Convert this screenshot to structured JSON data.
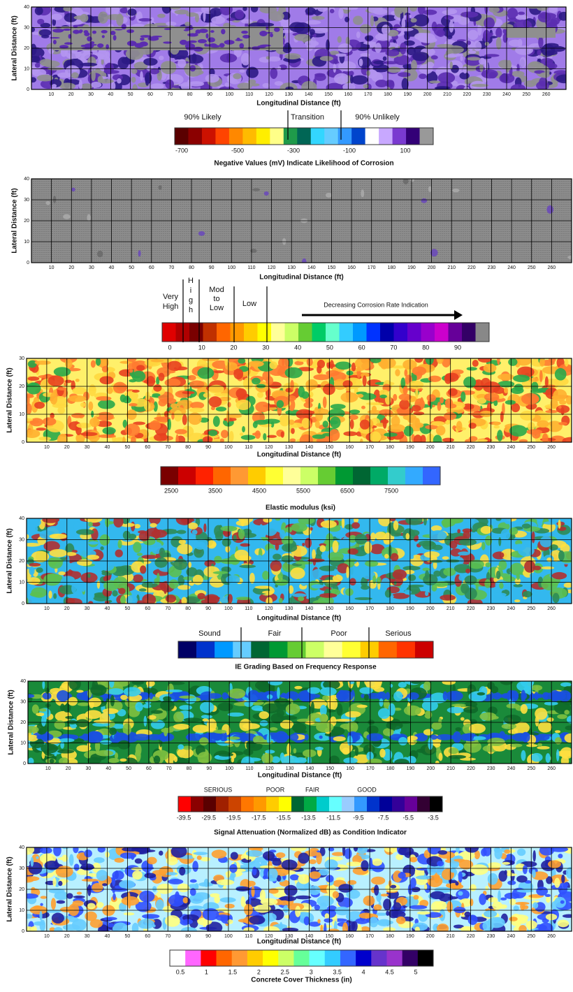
{
  "panels": [
    {
      "y_label": "Lateral Distance (ft)",
      "x_label": "Longitudinal Distance (ft)",
      "yticks": [
        "0",
        "10",
        "20",
        "30",
        "40"
      ],
      "xticks": [
        "10",
        "20",
        "30",
        "40",
        "50",
        "60",
        "70",
        "80",
        "90",
        "100",
        "110",
        "120",
        "130",
        "140",
        "150",
        "160",
        "170",
        "180",
        "190",
        "200",
        "210",
        "220",
        "230",
        "240",
        "250",
        "260"
      ],
      "map_colors": [
        "#a07be8",
        "#5b2db0",
        "#8f8f8f",
        "#2c1a85",
        "#b496f0"
      ],
      "legend_labels": [
        "90% Likely",
        "Transition",
        "90% Unlikely"
      ],
      "colorbar_colors": [
        "#5a0000",
        "#8b0000",
        "#cc1100",
        "#ff4400",
        "#ff8800",
        "#ffbb00",
        "#ffee00",
        "#ffff88",
        "#1f9a4a",
        "#006655",
        "#33d6ff",
        "#66ccff",
        "#3399ff",
        "#0044cc",
        "#ffffff",
        "#c8a8ff",
        "#7a3ad0",
        "#330077",
        "#999999"
      ],
      "colorbar_ticks": [
        "-700",
        "-500",
        "-300",
        "-100",
        "100"
      ],
      "caption": "Negative Values (mV) Indicate Likelihood of Corrosion"
    },
    {
      "y_label": "Lateral Distance (ft)",
      "x_label": "Longitudinal Distance (ft)",
      "yticks": [
        "0",
        "10",
        "20",
        "30",
        "40"
      ],
      "xticks": [
        "10",
        "20",
        "30",
        "40",
        "50",
        "60",
        "70",
        "80",
        "90",
        "100",
        "110",
        "120",
        "130",
        "140",
        "150",
        "160",
        "170",
        "180",
        "190",
        "200",
        "210",
        "220",
        "230",
        "240",
        "250",
        "260"
      ],
      "map_colors": [
        "#8c8c8c",
        "#6a6a6a",
        "#6a4ab8",
        "#a8a8a8"
      ],
      "legend_labels": [
        "Very High",
        "High",
        "Mod to Low",
        "Low",
        "Decreasing Corrosion Rate Indication"
      ],
      "colorbar_colors": [
        "#e00000",
        "#b00000",
        "#7a0000",
        "#c03000",
        "#ff6600",
        "#ff9900",
        "#ffcc00",
        "#ffff00",
        "#ffff99",
        "#ccff66",
        "#66cc33",
        "#00cc66",
        "#66ffcc",
        "#33ccff",
        "#0099ff",
        "#0033ff",
        "#0000aa",
        "#3300cc",
        "#6600cc",
        "#9900cc",
        "#cc00cc",
        "#660099",
        "#330066",
        "#888888"
      ],
      "colorbar_ticks": [
        "0",
        "10",
        "20",
        "30",
        "40",
        "50",
        "60",
        "70",
        "80",
        "90"
      ],
      "caption": ""
    },
    {
      "y_label": "Lateral Distance (ft)",
      "x_label": "Longitudinal Distance (ft)",
      "yticks": [
        "0",
        "10",
        "20",
        "30"
      ],
      "xticks": [
        "10",
        "20",
        "30",
        "40",
        "50",
        "60",
        "70",
        "80",
        "90",
        "100",
        "110",
        "120",
        "130",
        "140",
        "150",
        "160",
        "170",
        "180",
        "190",
        "200",
        "210",
        "220",
        "230",
        "240",
        "250",
        "260"
      ],
      "map_colors": [
        "#fff06a",
        "#ffb030",
        "#ff7a30",
        "#2aa84a",
        "#ffd840",
        "#e84020"
      ],
      "legend_labels": [],
      "colorbar_colors": [
        "#7a0000",
        "#cc0000",
        "#ff2200",
        "#ff6600",
        "#ff9933",
        "#ffcc00",
        "#ffff33",
        "#ffff99",
        "#ccff66",
        "#66cc33",
        "#009933",
        "#006633",
        "#00aa66",
        "#33cccc",
        "#33aaff",
        "#3366ff"
      ],
      "colorbar_ticks": [
        "2500",
        "3500",
        "4500",
        "5500",
        "6500",
        "7500"
      ],
      "caption": "Elastic modulus (ksi)"
    },
    {
      "y_label": "Lateral Distance (ft)",
      "x_label": "Longitudinal Distance (ft)",
      "yticks": [
        "0",
        "10",
        "20",
        "30",
        "40"
      ],
      "xticks": [
        "10",
        "20",
        "30",
        "40",
        "50",
        "60",
        "70",
        "80",
        "90",
        "100",
        "110",
        "120",
        "130",
        "140",
        "150",
        "160",
        "170",
        "180",
        "190",
        "200",
        "210",
        "220",
        "230",
        "240",
        "250",
        "260"
      ],
      "map_colors": [
        "#33b8ee",
        "#2e8b57",
        "#ffe040",
        "#b03030",
        "#5cc050",
        "#33b8ee"
      ],
      "legend_labels": [
        "Sound",
        "Fair",
        "Poor",
        "Serious"
      ],
      "colorbar_colors": [
        "#000066",
        "#0033cc",
        "#0099ff",
        "#66ccff",
        "#006633",
        "#009933",
        "#66cc33",
        "#ccff66",
        "#ffff99",
        "#ffff33",
        "#ffcc00",
        "#ff6600",
        "#ff3300",
        "#cc0000"
      ],
      "colorbar_ticks": [],
      "caption": "IE Grading Based on Frequency Response"
    },
    {
      "y_label": "Lateral Distance (ft)",
      "x_label": "Longitudinal Distance (ft)",
      "yticks": [
        "0",
        "10",
        "20",
        "30",
        "40"
      ],
      "xticks": [
        "10",
        "20",
        "30",
        "40",
        "50",
        "60",
        "70",
        "80",
        "90",
        "100",
        "110",
        "120",
        "130",
        "140",
        "150",
        "160",
        "170",
        "180",
        "190",
        "200",
        "210",
        "220",
        "230",
        "240",
        "250",
        "260"
      ],
      "map_colors": [
        "#1a8a3a",
        "#ffe040",
        "#33ccee",
        "#80c040",
        "#0f6a2a"
      ],
      "legend_labels": [
        "SERIOUS",
        "POOR",
        "FAIR",
        "GOOD"
      ],
      "colorbar_colors": [
        "#ff0000",
        "#8b0000",
        "#5a0000",
        "#a02000",
        "#cc4400",
        "#ff7700",
        "#ff9900",
        "#ffcc00",
        "#ffff00",
        "#006633",
        "#00aa44",
        "#00cccc",
        "#66ffff",
        "#99ccff",
        "#3399ff",
        "#0033cc",
        "#000099",
        "#330099",
        "#660099",
        "#330033",
        "#000000"
      ],
      "colorbar_ticks": [
        "-39.5",
        "-29.5",
        "-19.5",
        "-17.5",
        "-15.5",
        "-13.5",
        "-11.5",
        "-9.5",
        "-7.5",
        "-5.5",
        "-3.5"
      ],
      "caption": "Signal Attenuation (Normalized dB) as Condition Indicator"
    },
    {
      "y_label": "Lateral Distance (ft)",
      "x_label": "Longitudinal Distance (ft)",
      "yticks": [
        "0",
        "10",
        "20",
        "30",
        "40"
      ],
      "xticks": [
        "10",
        "20",
        "30",
        "40",
        "50",
        "60",
        "70",
        "80",
        "90",
        "100",
        "110",
        "120",
        "130",
        "140",
        "150",
        "160",
        "170",
        "180",
        "190",
        "200",
        "210",
        "220",
        "230",
        "240",
        "250",
        "260"
      ],
      "map_colors": [
        "#b8f0ff",
        "#ffff80",
        "#3050ff",
        "#66ccff",
        "#ffa030",
        "#2020a0"
      ],
      "legend_labels": [],
      "colorbar_colors": [
        "#ffffff",
        "#ff66ff",
        "#ff0000",
        "#ff6600",
        "#ff9933",
        "#ffcc00",
        "#ffff00",
        "#ccff66",
        "#66ff99",
        "#66ffff",
        "#33ccff",
        "#3366ff",
        "#0000cc",
        "#6633cc",
        "#9933cc",
        "#330066",
        "#000000"
      ],
      "colorbar_ticks": [
        "0.5",
        "1",
        "1.5",
        "2",
        "2.5",
        "3",
        "3.5",
        "4",
        "4.5",
        "5"
      ],
      "caption": "Concrete Cover Thickness (in)"
    }
  ]
}
